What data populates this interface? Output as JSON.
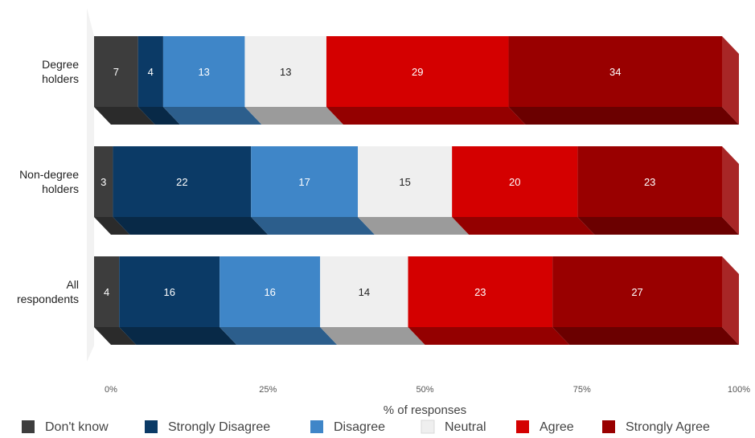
{
  "chart_data": {
    "type": "bar",
    "orientation": "horizontal",
    "stacked": true,
    "style": "3d",
    "categories": [
      "Degree holders",
      "Non-degree holders",
      "All respondents"
    ],
    "category_lines": [
      [
        "Degree",
        "holders"
      ],
      [
        "Non-degree",
        "holders"
      ],
      [
        "All",
        "respondents"
      ]
    ],
    "series": [
      {
        "name": "Don't know",
        "color": "#3d3d3d",
        "label_color": "#ffffff",
        "values": [
          7,
          3,
          4
        ]
      },
      {
        "name": "Strongly Disagree",
        "color": "#0b3a66",
        "label_color": "#ffffff",
        "values": [
          4,
          22,
          16
        ]
      },
      {
        "name": "Disagree",
        "color": "#3f86c8",
        "label_color": "#ffffff",
        "values": [
          13,
          17,
          16
        ]
      },
      {
        "name": "Neutral",
        "color": "#efefef",
        "label_color": "#222222",
        "values": [
          13,
          15,
          14
        ]
      },
      {
        "name": "Agree",
        "color": "#d40000",
        "label_color": "#ffffff",
        "values": [
          29,
          20,
          23
        ]
      },
      {
        "name": "Strongly Agree",
        "color": "#990000",
        "label_color": "#ffffff",
        "values": [
          34,
          23,
          27
        ]
      }
    ],
    "xlabel": "% of responses",
    "ylabel": "",
    "xlim": [
      0,
      100
    ],
    "xticks": [
      "0%",
      "25%",
      "50%",
      "75%",
      "100%"
    ],
    "xtick_values": [
      0,
      25,
      50,
      75,
      100
    ],
    "legend_position": "bottom",
    "grid": false
  }
}
